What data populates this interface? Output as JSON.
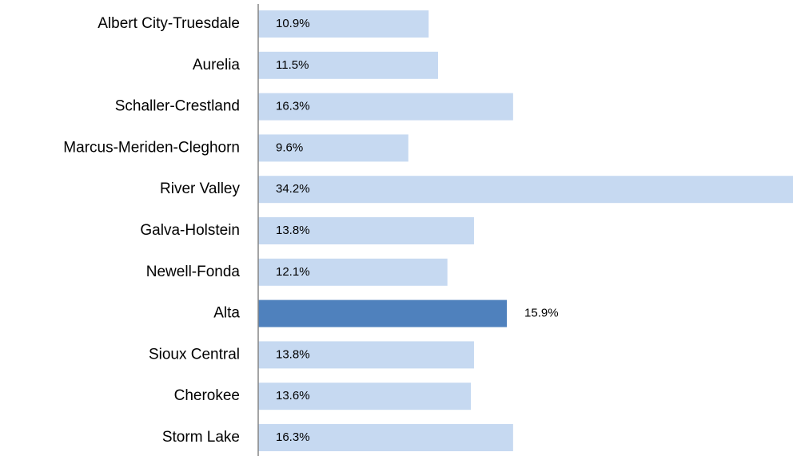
{
  "chart_data": {
    "type": "hbar",
    "categories": [
      "Albert City-Truesdale",
      "Aurelia",
      "Schaller-Crestland",
      "Marcus-Meriden-Cleghorn",
      "River Valley",
      "Galva-Holstein",
      "Newell-Fonda",
      "Alta",
      "Sioux Central",
      "Cherokee",
      "Storm Lake"
    ],
    "values": [
      10.9,
      11.5,
      16.3,
      9.6,
      34.2,
      13.8,
      12.1,
      15.9,
      13.8,
      13.6,
      16.3
    ],
    "value_labels": [
      "10.9%",
      "11.5%",
      "16.3%",
      "9.6%",
      "34.2%",
      "13.8%",
      "12.1%",
      "15.9%",
      "13.8%",
      "13.6%",
      "16.3%"
    ],
    "colors": [
      "#c6d9f1",
      "#c6d9f1",
      "#c6d9f1",
      "#c6d9f1",
      "#c6d9f1",
      "#c6d9f1",
      "#c6d9f1",
      "#4f81bd",
      "#c6d9f1",
      "#c6d9f1",
      "#c6d9f1"
    ],
    "xlim": [
      0,
      34.2
    ]
  }
}
